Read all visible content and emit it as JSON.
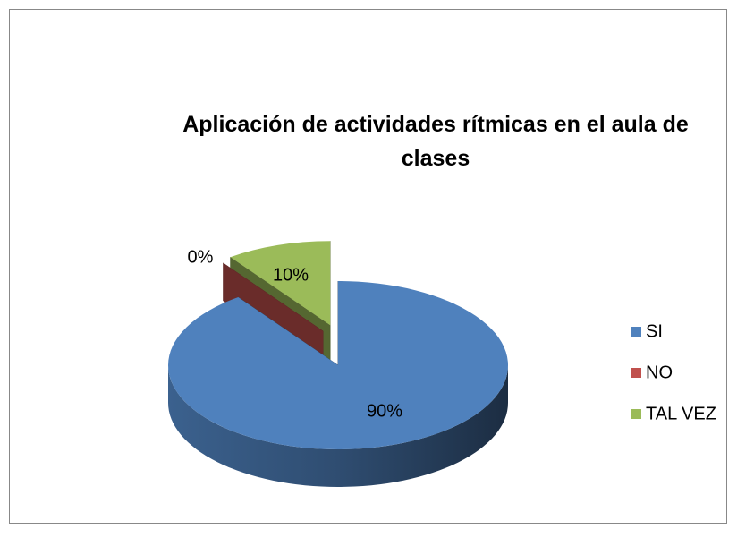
{
  "chart_data": {
    "type": "pie",
    "title": "Aplicación de actividades rítmicas en el aula de clases",
    "categories": [
      "SI",
      "NO",
      "TAL VEZ"
    ],
    "values": [
      90,
      0,
      10
    ],
    "value_labels": [
      "90%",
      "0%",
      "10%"
    ],
    "colors": [
      "#4f81bd",
      "#c0504d",
      "#9bbb59"
    ],
    "legend": "right"
  }
}
